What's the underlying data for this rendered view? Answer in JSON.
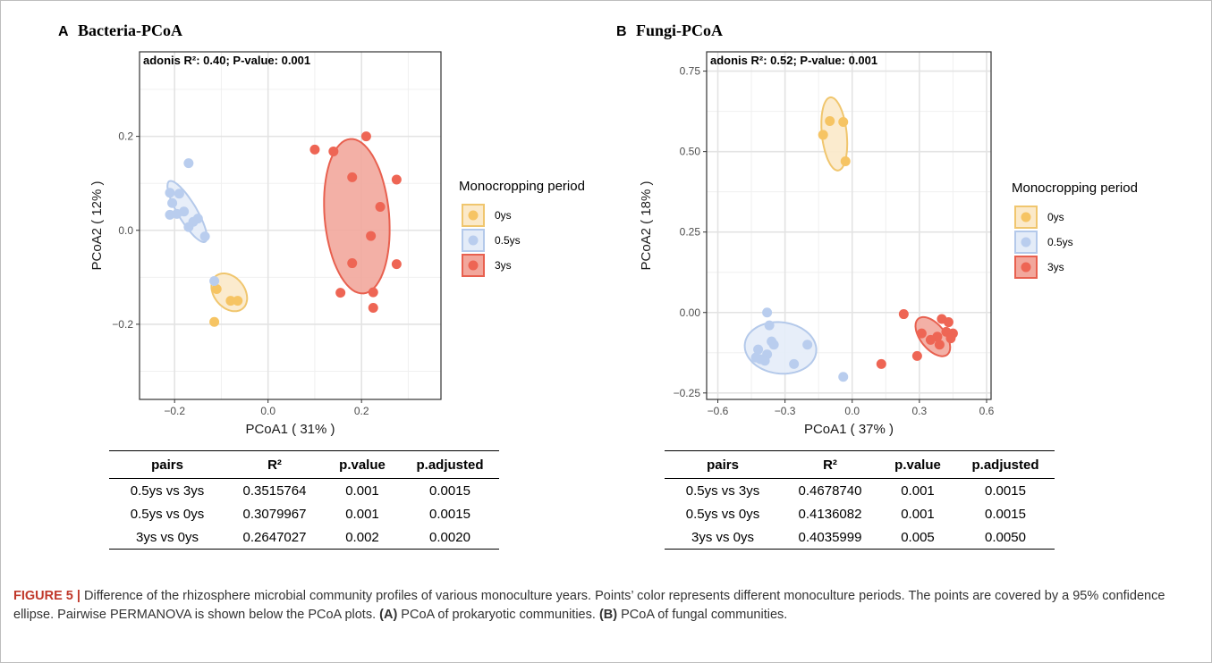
{
  "legend_title": "Monocropping period",
  "groups": [
    {
      "label": "0ys",
      "fill": "#f6c463",
      "ellipse_fill": "#fbe9c9",
      "ellipse_stroke": "#f0c66e"
    },
    {
      "label": "0.5ys",
      "fill": "#b9cdee",
      "ellipse_fill": "#e4ecf8",
      "ellipse_stroke": "#b4c9ea"
    },
    {
      "label": "3ys",
      "fill": "#ee6554",
      "ellipse_fill": "#f2a79c",
      "ellipse_stroke": "#e8604f"
    }
  ],
  "chart_data": [
    {
      "type": "scatter",
      "panel_letter": "A",
      "title": "Bacteria-PCoA",
      "annotation": "adonis R²: 0.40; P-value: 0.001",
      "xlabel": "PCoA1 ( 31% )",
      "ylabel": "PCoA2 ( 12% )",
      "xlim": [
        -0.275,
        0.37
      ],
      "ylim": [
        -0.36,
        0.38
      ],
      "xticks": [
        {
          "v": -0.2,
          "label": "−0.2"
        },
        {
          "v": 0.0,
          "label": "0.0"
        },
        {
          "v": 0.2,
          "label": "0.2"
        }
      ],
      "yticks": [
        {
          "v": -0.2,
          "label": "−0.2"
        },
        {
          "v": 0.0,
          "label": "0.0"
        },
        {
          "v": 0.2,
          "label": "0.2"
        }
      ],
      "grid": true,
      "legend_position": "right",
      "series": [
        {
          "name": "0ys",
          "points": [
            [
              -0.11,
              -0.125
            ],
            [
              -0.08,
              -0.15
            ],
            [
              -0.065,
              -0.15
            ],
            [
              -0.115,
              -0.195
            ]
          ]
        },
        {
          "name": "0.5ys",
          "points": [
            [
              -0.17,
              0.143
            ],
            [
              -0.21,
              0.08
            ],
            [
              -0.19,
              0.078
            ],
            [
              -0.205,
              0.058
            ],
            [
              -0.21,
              0.033
            ],
            [
              -0.195,
              0.035
            ],
            [
              -0.18,
              0.04
            ],
            [
              -0.15,
              0.025
            ],
            [
              -0.16,
              0.018
            ],
            [
              -0.17,
              0.007
            ],
            [
              -0.135,
              -0.013
            ],
            [
              -0.115,
              -0.108
            ]
          ]
        },
        {
          "name": "3ys",
          "points": [
            [
              0.1,
              0.172
            ],
            [
              0.14,
              0.168
            ],
            [
              0.21,
              0.2
            ],
            [
              0.18,
              0.113
            ],
            [
              0.275,
              0.108
            ],
            [
              0.24,
              0.05
            ],
            [
              0.22,
              -0.012
            ],
            [
              0.18,
              -0.07
            ],
            [
              0.275,
              -0.072
            ],
            [
              0.155,
              -0.133
            ],
            [
              0.225,
              -0.132
            ],
            [
              0.225,
              -0.165
            ]
          ]
        }
      ],
      "ellipses": [
        {
          "name": "0ys",
          "cx": -0.083,
          "cy": -0.132,
          "rx": 0.09,
          "ry": 0.065,
          "rot": -50
        },
        {
          "name": "0.5ys",
          "cx": -0.173,
          "cy": 0.04,
          "rx": 0.15,
          "ry": 0.04,
          "rot": -59
        },
        {
          "name": "3ys",
          "cx": 0.19,
          "cy": 0.03,
          "rx": 0.33,
          "ry": 0.138,
          "rot": -85
        }
      ]
    },
    {
      "type": "scatter",
      "panel_letter": "B",
      "title": "Fungi-PCoA",
      "annotation": "adonis R²: 0.52; P-value: 0.001",
      "xlabel": "PCoA1 ( 37% )",
      "ylabel": "PCoA2 ( 18% )",
      "xlim": [
        -0.65,
        0.62
      ],
      "ylim": [
        -0.27,
        0.81
      ],
      "xticks": [
        {
          "v": -0.6,
          "label": "−0.6"
        },
        {
          "v": -0.3,
          "label": "−0.3"
        },
        {
          "v": 0.0,
          "label": "0.0"
        },
        {
          "v": 0.3,
          "label": "0.3"
        },
        {
          "v": 0.6,
          "label": "0.6"
        }
      ],
      "yticks": [
        {
          "v": -0.25,
          "label": "−0.25"
        },
        {
          "v": 0.0,
          "label": "0.00"
        },
        {
          "v": 0.25,
          "label": "0.25"
        },
        {
          "v": 0.5,
          "label": "0.50"
        },
        {
          "v": 0.75,
          "label": "0.75"
        }
      ],
      "grid": true,
      "legend_position": "right",
      "series": [
        {
          "name": "0ys",
          "points": [
            [
              -0.1,
              0.595
            ],
            [
              -0.04,
              0.592
            ],
            [
              -0.13,
              0.552
            ],
            [
              -0.03,
              0.47
            ]
          ]
        },
        {
          "name": "0.5ys",
          "points": [
            [
              -0.38,
              0.0
            ],
            [
              -0.37,
              -0.04
            ],
            [
              -0.36,
              -0.09
            ],
            [
              -0.35,
              -0.1
            ],
            [
              -0.42,
              -0.115
            ],
            [
              -0.38,
              -0.13
            ],
            [
              -0.43,
              -0.14
            ],
            [
              -0.41,
              -0.145
            ],
            [
              -0.39,
              -0.15
            ],
            [
              -0.2,
              -0.1
            ],
            [
              -0.26,
              -0.16
            ],
            [
              -0.04,
              -0.2
            ]
          ]
        },
        {
          "name": "3ys",
          "points": [
            [
              0.23,
              -0.005
            ],
            [
              0.4,
              -0.02
            ],
            [
              0.43,
              -0.03
            ],
            [
              0.31,
              -0.065
            ],
            [
              0.42,
              -0.06
            ],
            [
              0.45,
              -0.065
            ],
            [
              0.38,
              -0.075
            ],
            [
              0.44,
              -0.08
            ],
            [
              0.35,
              -0.085
            ],
            [
              0.39,
              -0.1
            ],
            [
              0.29,
              -0.135
            ],
            [
              0.13,
              -0.16
            ]
          ]
        }
      ],
      "ellipses": [
        {
          "name": "0ys",
          "cx": -0.08,
          "cy": 0.555,
          "rx": 0.23,
          "ry": 0.11,
          "rot": -80
        },
        {
          "name": "0.5ys",
          "cx": -0.32,
          "cy": -0.11,
          "rx": 0.32,
          "ry": 0.16,
          "rot": -3
        },
        {
          "name": "3ys",
          "cx": 0.36,
          "cy": -0.075,
          "rx": 0.175,
          "ry": 0.09,
          "rot": -33
        }
      ]
    }
  ],
  "tables": [
    {
      "headers": [
        "pairs",
        "R²",
        "p.value",
        "p.adjusted"
      ],
      "rows": [
        [
          "0.5ys vs 3ys",
          "0.3515764",
          "0.001",
          "0.0015"
        ],
        [
          "0.5ys vs 0ys",
          "0.3079967",
          "0.001",
          "0.0015"
        ],
        [
          "3ys vs 0ys",
          "0.2647027",
          "0.002",
          "0.0020"
        ]
      ]
    },
    {
      "headers": [
        "pairs",
        "R²",
        "p.value",
        "p.adjusted"
      ],
      "rows": [
        [
          "0.5ys vs 3ys",
          "0.4678740",
          "0.001",
          "0.0015"
        ],
        [
          "0.5ys vs 0ys",
          "0.4136082",
          "0.001",
          "0.0015"
        ],
        [
          "3ys vs 0ys",
          "0.4035999",
          "0.005",
          "0.0050"
        ]
      ]
    }
  ],
  "caption": {
    "label": "FIGURE 5 |",
    "part1": " Difference of the rhizosphere microbial community profiles of various monoculture years. Points’ color represents different monoculture periods. The points are covered by a 95% confidence ellipse. Pairwise PERMANOVA is shown below the PCoA plots. ",
    "ref_a": "(A)",
    "part2": " PCoA of prokaryotic communities. ",
    "ref_b": "(B)",
    "part3": " PCoA of fungal communities."
  }
}
